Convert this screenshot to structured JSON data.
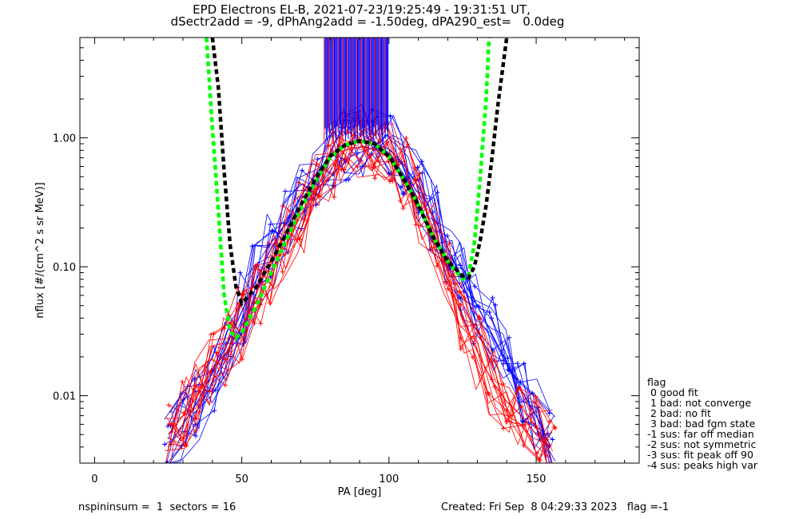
{
  "chart_data": {
    "type": "line",
    "title": "EPD Electrons EL-B, 2021-07-23/19:25:49 - 19:31:51 UT,",
    "subtitle": "dSectr2add = -9, dPhAng2add = -1.50deg, dPA290_est=   0.0deg",
    "xlabel": "PA [deg]",
    "ylabel": "nflux [#/(cm^2 s sr MeV)]",
    "xlim": [
      -5,
      185
    ],
    "ylim": [
      0.003,
      6.0
    ],
    "y_scale": "log",
    "x_ticks": [
      "0",
      "50",
      "100",
      "150"
    ],
    "x_tick_values": [
      0,
      50,
      100,
      150
    ],
    "y_ticks": [
      "0.01",
      "0.10",
      "1.00"
    ],
    "y_tick_values": [
      0.01,
      0.1,
      1.0
    ],
    "grid": false,
    "series": [
      {
        "color": "#0000ff",
        "marker": "+",
        "x": [
          25,
          30,
          35,
          40,
          45,
          50,
          55,
          60,
          65,
          70,
          75,
          80,
          85,
          90,
          95,
          100,
          105,
          110,
          115,
          120,
          125,
          130,
          135,
          140,
          145,
          150,
          155
        ],
        "y": [
          0.004,
          0.006,
          0.009,
          0.015,
          0.025,
          0.045,
          0.08,
          0.14,
          0.22,
          0.35,
          0.52,
          0.72,
          0.88,
          0.92,
          0.9,
          0.82,
          0.62,
          0.42,
          0.25,
          0.14,
          0.08,
          0.05,
          0.03,
          0.018,
          0.011,
          0.007,
          0.004
        ]
      },
      {
        "color": "#ff0000",
        "marker": "+",
        "x": [
          25,
          30,
          35,
          40,
          45,
          50,
          55,
          60,
          65,
          70,
          75,
          80,
          85,
          90,
          95,
          100,
          105,
          110,
          115,
          120,
          125,
          130,
          135,
          140,
          145,
          150,
          155
        ],
        "y": [
          0.005,
          0.007,
          0.01,
          0.016,
          0.022,
          0.035,
          0.055,
          0.09,
          0.15,
          0.25,
          0.4,
          0.6,
          0.8,
          0.85,
          0.82,
          0.7,
          0.5,
          0.3,
          0.16,
          0.08,
          0.04,
          0.022,
          0.013,
          0.009,
          0.007,
          0.005,
          0.004
        ]
      },
      {
        "color": "#00ff00",
        "dashed": true,
        "x": [
          38,
          40,
          42,
          44,
          46,
          48,
          50,
          55,
          60,
          65,
          70,
          75,
          80,
          85,
          90,
          95,
          100,
          105,
          110,
          115,
          120,
          125,
          127,
          129,
          131,
          133,
          134
        ],
        "y": [
          6.0,
          1.2,
          0.28,
          0.06,
          0.032,
          0.028,
          0.031,
          0.05,
          0.09,
          0.16,
          0.28,
          0.46,
          0.7,
          0.88,
          0.95,
          0.9,
          0.72,
          0.48,
          0.3,
          0.17,
          0.11,
          0.08,
          0.085,
          0.15,
          0.5,
          2.0,
          6.0
        ]
      },
      {
        "color": "#000000",
        "dashed": true,
        "x": [
          40,
          42,
          44,
          46,
          48,
          50,
          55,
          60,
          65,
          70,
          75,
          80,
          85,
          90,
          95,
          100,
          105,
          110,
          115,
          120,
          125,
          127,
          129,
          131,
          133,
          135,
          137,
          140
        ],
        "y": [
          6.0,
          2.5,
          0.55,
          0.15,
          0.07,
          0.052,
          0.07,
          0.11,
          0.18,
          0.3,
          0.48,
          0.72,
          0.88,
          0.95,
          0.9,
          0.72,
          0.48,
          0.3,
          0.17,
          0.11,
          0.085,
          0.082,
          0.1,
          0.16,
          0.3,
          0.7,
          1.8,
          6.0
        ]
      }
    ]
  },
  "legend": {
    "heading": "flag",
    "items": [
      " 0 good fit",
      " 1 bad: not converge",
      " 2 bad: no fit",
      " 3 bad: bad fgm state",
      "-1 sus: far off median",
      "-2 sus: not symmetric",
      "-3 sus: fit peak off 90",
      "-4 sus: peaks high var"
    ]
  },
  "footer": {
    "left": "nspininsum =  1  sectors = 16",
    "right": "Created: Fri Sep  8 04:29:33 2023   flag =-1"
  }
}
